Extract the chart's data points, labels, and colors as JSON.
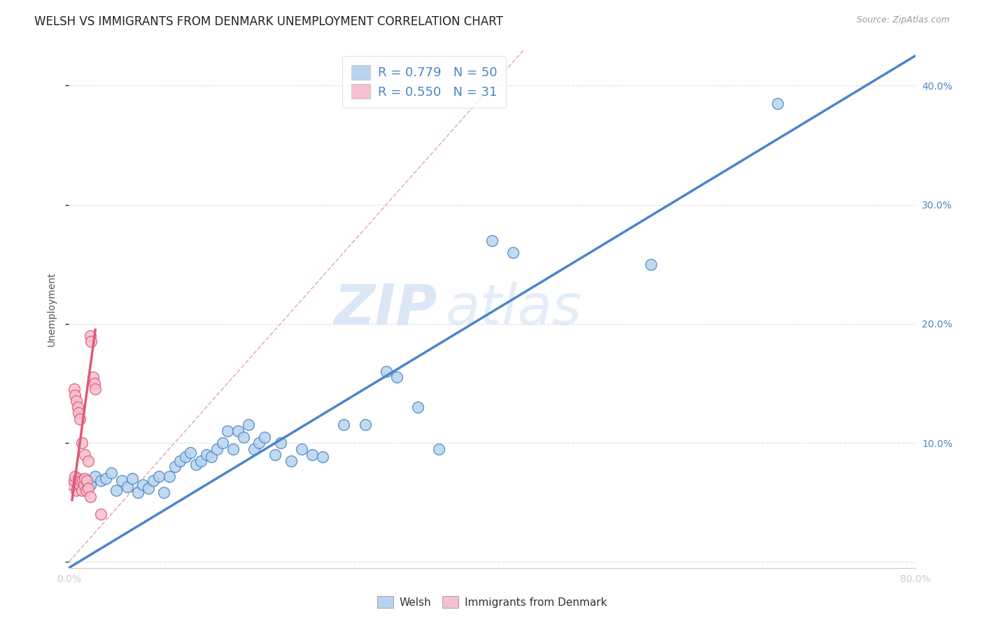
{
  "title": "WELSH VS IMMIGRANTS FROM DENMARK UNEMPLOYMENT CORRELATION CHART",
  "source": "Source: ZipAtlas.com",
  "ylabel": "Unemployment",
  "xlim": [
    0.0,
    0.8
  ],
  "ylim": [
    -0.005,
    0.43
  ],
  "ytick_positions": [
    0.0,
    0.1,
    0.2,
    0.3,
    0.4
  ],
  "ytick_labels_right": [
    "",
    "10.0%",
    "20.0%",
    "30.0%",
    "40.0%"
  ],
  "legend_entries": [
    {
      "label": "R = 0.779   N = 50",
      "color": "#b8d4ee",
      "text_color": "#4a86c8"
    },
    {
      "label": "R = 0.550   N = 31",
      "color": "#f5c0cf",
      "text_color": "#e05878"
    }
  ],
  "watermark_zip": "ZIP",
  "watermark_atlas": "atlas",
  "welsh_scatter": [
    [
      0.02,
      0.065
    ],
    [
      0.025,
      0.072
    ],
    [
      0.03,
      0.068
    ],
    [
      0.035,
      0.07
    ],
    [
      0.04,
      0.075
    ],
    [
      0.045,
      0.06
    ],
    [
      0.05,
      0.068
    ],
    [
      0.055,
      0.063
    ],
    [
      0.06,
      0.07
    ],
    [
      0.065,
      0.058
    ],
    [
      0.07,
      0.065
    ],
    [
      0.075,
      0.062
    ],
    [
      0.08,
      0.068
    ],
    [
      0.085,
      0.072
    ],
    [
      0.09,
      0.058
    ],
    [
      0.095,
      0.072
    ],
    [
      0.1,
      0.08
    ],
    [
      0.105,
      0.085
    ],
    [
      0.11,
      0.088
    ],
    [
      0.115,
      0.092
    ],
    [
      0.12,
      0.082
    ],
    [
      0.125,
      0.085
    ],
    [
      0.13,
      0.09
    ],
    [
      0.135,
      0.088
    ],
    [
      0.14,
      0.095
    ],
    [
      0.145,
      0.1
    ],
    [
      0.15,
      0.11
    ],
    [
      0.155,
      0.095
    ],
    [
      0.16,
      0.11
    ],
    [
      0.165,
      0.105
    ],
    [
      0.17,
      0.115
    ],
    [
      0.175,
      0.095
    ],
    [
      0.18,
      0.1
    ],
    [
      0.185,
      0.105
    ],
    [
      0.195,
      0.09
    ],
    [
      0.2,
      0.1
    ],
    [
      0.21,
      0.085
    ],
    [
      0.22,
      0.095
    ],
    [
      0.23,
      0.09
    ],
    [
      0.24,
      0.088
    ],
    [
      0.26,
      0.115
    ],
    [
      0.28,
      0.115
    ],
    [
      0.3,
      0.16
    ],
    [
      0.31,
      0.155
    ],
    [
      0.33,
      0.13
    ],
    [
      0.35,
      0.095
    ],
    [
      0.4,
      0.27
    ],
    [
      0.42,
      0.26
    ],
    [
      0.55,
      0.25
    ],
    [
      0.67,
      0.385
    ]
  ],
  "denmark_scatter": [
    [
      0.003,
      0.065
    ],
    [
      0.005,
      0.068
    ],
    [
      0.006,
      0.072
    ],
    [
      0.007,
      0.06
    ],
    [
      0.008,
      0.065
    ],
    [
      0.009,
      0.07
    ],
    [
      0.01,
      0.065
    ],
    [
      0.011,
      0.068
    ],
    [
      0.012,
      0.06
    ],
    [
      0.013,
      0.068
    ],
    [
      0.014,
      0.065
    ],
    [
      0.015,
      0.07
    ],
    [
      0.016,
      0.06
    ],
    [
      0.017,
      0.068
    ],
    [
      0.018,
      0.062
    ],
    [
      0.02,
      0.19
    ],
    [
      0.021,
      0.185
    ],
    [
      0.023,
      0.155
    ],
    [
      0.024,
      0.15
    ],
    [
      0.025,
      0.145
    ],
    [
      0.005,
      0.145
    ],
    [
      0.006,
      0.14
    ],
    [
      0.007,
      0.135
    ],
    [
      0.008,
      0.13
    ],
    [
      0.009,
      0.125
    ],
    [
      0.01,
      0.12
    ],
    [
      0.012,
      0.1
    ],
    [
      0.015,
      0.09
    ],
    [
      0.018,
      0.085
    ],
    [
      0.02,
      0.055
    ],
    [
      0.03,
      0.04
    ]
  ],
  "welsh_line": {
    "x0": 0.0,
    "y0": -0.005,
    "x1": 0.8,
    "y1": 0.425
  },
  "denmark_line": {
    "x0": 0.003,
    "y0": 0.052,
    "x1": 0.025,
    "y1": 0.195
  },
  "diagonal_line": {
    "x0": 0.0,
    "y0": 0.0,
    "x1": 0.43,
    "y1": 0.43
  },
  "blue_color": "#4a86c8",
  "blue_scatter_color": "#b8d4ee",
  "pink_color": "#e05878",
  "pink_scatter_color": "#f5c0cf",
  "diagonal_color": "#e8b0bc",
  "grid_color": "#e0e0e0",
  "background_color": "#ffffff",
  "title_fontsize": 12,
  "axis_label_fontsize": 10,
  "tick_fontsize": 10,
  "legend_fontsize": 13
}
